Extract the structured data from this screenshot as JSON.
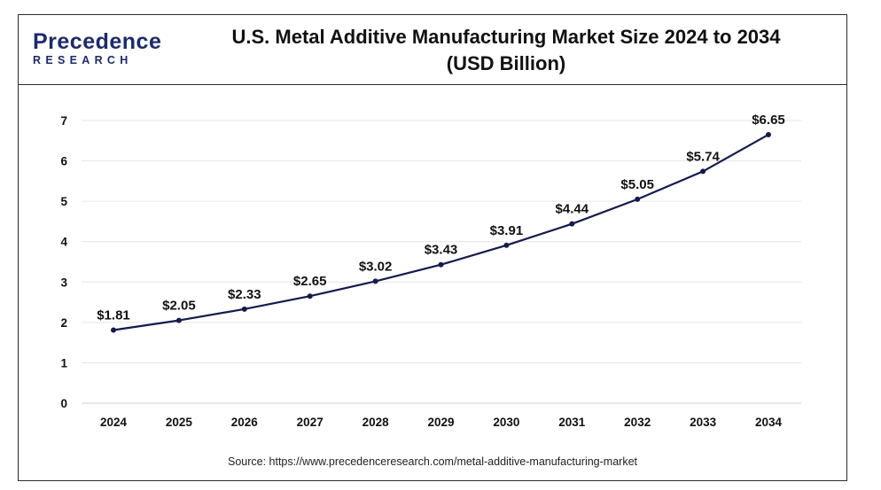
{
  "header": {
    "logo_main": "Precedence",
    "logo_sub": "RESEARCH",
    "title_line1": "U.S. Metal Additive Manufacturing Market Size 2024 to 2034",
    "title_line2": "(USD Billion)"
  },
  "source_text": "Source: https://www.precedenceresearch.com/metal-additive-manufacturing-market",
  "colors": {
    "line": "#141a4d",
    "marker": "#141a4d",
    "grid": "#e6e6e6",
    "logo": "#1d2a6b"
  },
  "chart_data": {
    "type": "line",
    "title": "U.S. Metal Additive Manufacturing Market Size 2024 to 2034 (USD Billion)",
    "xlabel": "",
    "ylabel": "",
    "categories": [
      "2024",
      "2025",
      "2026",
      "2027",
      "2028",
      "2029",
      "2030",
      "2031",
      "2032",
      "2033",
      "2034"
    ],
    "series": [
      {
        "values": [
          1.81,
          2.05,
          2.33,
          2.65,
          3.02,
          3.43,
          3.91,
          4.44,
          5.05,
          5.74,
          6.65
        ],
        "data_labels": [
          "$1.81",
          "$2.05",
          "$2.33",
          "$2.65",
          "$3.02",
          "$3.43",
          "$3.91",
          "$4.44",
          "$5.05",
          "$5.74",
          "$6.65"
        ]
      }
    ],
    "ylim": [
      0,
      7
    ],
    "yticks": [
      0,
      1,
      2,
      3,
      4,
      5,
      6,
      7
    ],
    "grid": true,
    "legend": "none"
  }
}
